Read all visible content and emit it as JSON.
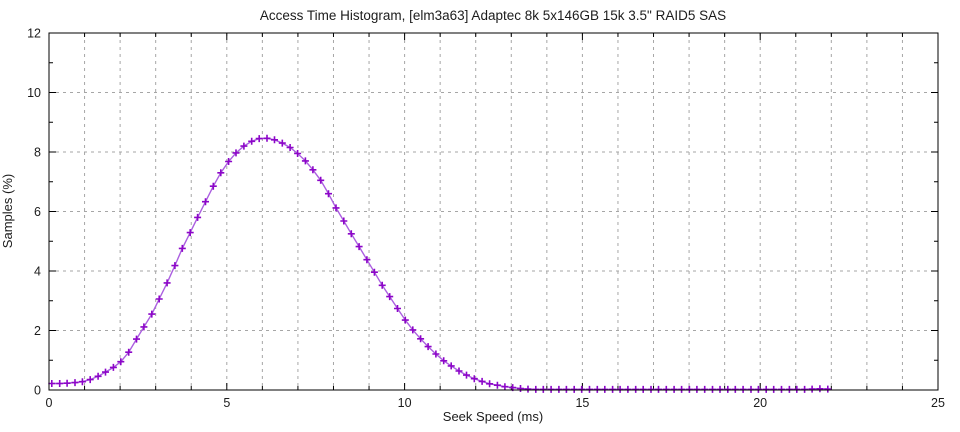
{
  "title": "Access Time Histogram, [elm3a63] Adaptec 8k 5x146GB 15k 3.5\" RAID5 SAS",
  "chart_data": {
    "type": "line",
    "title": "Access Time Histogram, [elm3a63] Adaptec 8k 5x146GB 15k 3.5\" RAID5 SAS",
    "xlabel": "Seek Speed (ms)",
    "ylabel": "Samples (%)",
    "xlim": [
      0,
      25
    ],
    "ylim": [
      0,
      12
    ],
    "x_major_ticks": [
      0,
      5,
      10,
      15,
      20,
      25
    ],
    "x_tick_labels": [
      "0",
      "5",
      "10",
      "15",
      "20",
      "25"
    ],
    "y_major_ticks": [
      0,
      2,
      4,
      6,
      8,
      10,
      12
    ],
    "y_tick_labels": [
      "0",
      "2",
      "4",
      "6",
      "8",
      "10",
      "12"
    ],
    "x_minor_step": 1,
    "y_minor_step": 1,
    "grid": {
      "vertical_step": 1,
      "horizontal_step": 2,
      "style": "dashed"
    },
    "legend": "none",
    "series": [
      {
        "name": "seek-time-distribution",
        "marker": "plus",
        "line_color": "#ab5fe0",
        "marker_color": "#8c06c8",
        "x": [
          0.08,
          0.3,
          0.51,
          0.73,
          0.94,
          1.16,
          1.38,
          1.59,
          1.81,
          2.02,
          2.24,
          2.46,
          2.67,
          2.89,
          3.1,
          3.32,
          3.54,
          3.75,
          3.97,
          4.18,
          4.4,
          4.62,
          4.83,
          5.05,
          5.26,
          5.48,
          5.7,
          5.91,
          6.13,
          6.34,
          6.56,
          6.78,
          6.99,
          7.21,
          7.42,
          7.64,
          7.86,
          8.07,
          8.29,
          8.5,
          8.72,
          8.94,
          9.15,
          9.37,
          9.58,
          9.8,
          10.02,
          10.23,
          10.45,
          10.66,
          10.88,
          11.1,
          11.31,
          11.53,
          11.74,
          11.96,
          12.18,
          12.39,
          12.61,
          12.82,
          13.04,
          13.26,
          13.47,
          13.69,
          13.9,
          14.12,
          14.34,
          14.55,
          14.77,
          14.98,
          15.2,
          15.42,
          15.63,
          15.85,
          16.06,
          16.28,
          16.5,
          16.71,
          16.93,
          17.14,
          17.36,
          17.58,
          17.79,
          18.01,
          18.22,
          18.44,
          18.66,
          18.87,
          19.09,
          19.3,
          19.52,
          19.74,
          19.95,
          20.17,
          20.38,
          20.6,
          20.82,
          21.03,
          21.25,
          21.46,
          21.68,
          21.9
        ],
        "y": [
          0.22,
          0.22,
          0.23,
          0.25,
          0.28,
          0.35,
          0.46,
          0.6,
          0.76,
          0.95,
          1.27,
          1.71,
          2.12,
          2.55,
          3.06,
          3.6,
          4.18,
          4.76,
          5.29,
          5.8,
          6.33,
          6.85,
          7.3,
          7.68,
          7.97,
          8.2,
          8.36,
          8.45,
          8.46,
          8.41,
          8.3,
          8.15,
          7.95,
          7.7,
          7.4,
          7.05,
          6.6,
          6.12,
          5.68,
          5.25,
          4.82,
          4.38,
          3.96,
          3.52,
          3.14,
          2.74,
          2.35,
          2.02,
          1.72,
          1.46,
          1.21,
          0.98,
          0.81,
          0.64,
          0.5,
          0.38,
          0.29,
          0.21,
          0.16,
          0.11,
          0.08,
          0.05,
          0.03,
          0.02,
          0.02,
          0.02,
          0.02,
          0.02,
          0.02,
          0.02,
          0.02,
          0.02,
          0.02,
          0.02,
          0.02,
          0.02,
          0.02,
          0.02,
          0.02,
          0.02,
          0.02,
          0.02,
          0.02,
          0.02,
          0.02,
          0.02,
          0.02,
          0.02,
          0.02,
          0.02,
          0.02,
          0.02,
          0.02,
          0.02,
          0.02,
          0.02,
          0.02,
          0.02,
          0.02,
          0.03,
          0.04,
          0.03
        ]
      }
    ]
  },
  "colors": {
    "background": "#ffffff",
    "plot_border": "#000000",
    "grid": "#a6a6a6",
    "text": "#1c1c1c",
    "series_line": "#ab5fe0",
    "series_marker": "#8c06c8"
  }
}
